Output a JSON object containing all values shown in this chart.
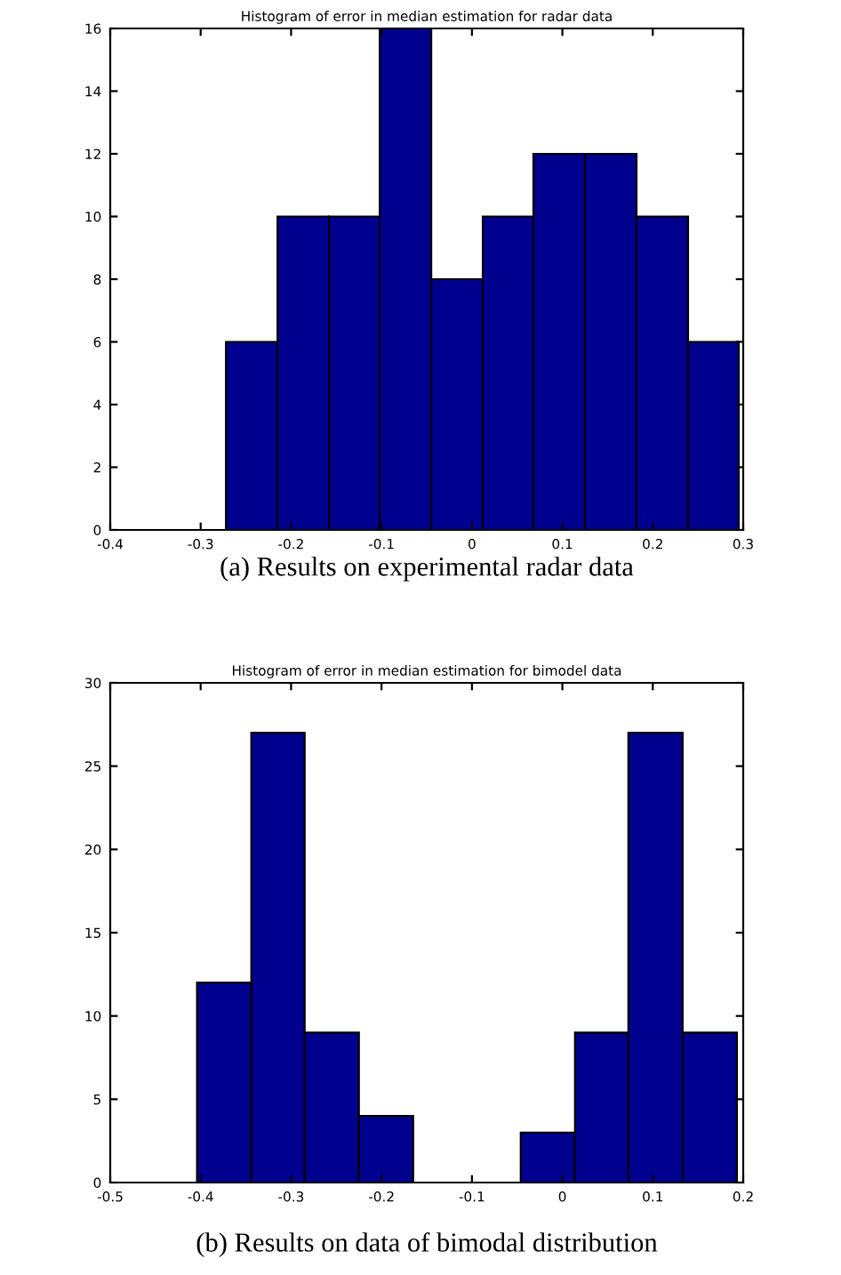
{
  "chart_data": [
    {
      "type": "histogram",
      "title": "Histogram of error in median estimation for radar data",
      "bins": [
        -0.272,
        -0.215,
        -0.158,
        -0.102,
        -0.045,
        0.012,
        0.068,
        0.125,
        0.182,
        0.239,
        0.295
      ],
      "values": [
        6,
        10,
        10,
        16,
        8,
        10,
        12,
        12,
        10,
        6
      ],
      "color": "#00008f",
      "xlim": [
        -0.4,
        0.3
      ],
      "xticks": [
        {
          "value": -0.4,
          "label": "-0.4"
        },
        {
          "value": -0.3,
          "label": "-0.3"
        },
        {
          "value": -0.2,
          "label": "-0.2"
        },
        {
          "value": -0.1,
          "label": "-0.1"
        },
        0,
        0.1,
        0.2,
        0.3
      ],
      "ylim": [
        0,
        16
      ],
      "yticks": [
        0,
        2,
        4,
        6,
        8,
        10,
        12,
        14,
        16
      ],
      "annotations": [
        "(a) Results on experimental radar data"
      ]
    },
    {
      "type": "histogram",
      "title": "Histogram of error in median estimation for bimodel data",
      "bins": [
        -0.404,
        -0.344,
        -0.285,
        -0.225,
        -0.165,
        -0.106,
        -0.046,
        0.014,
        0.073,
        0.133,
        0.193
      ],
      "values": [
        12,
        27,
        9,
        4,
        0,
        0,
        3,
        9,
        27,
        9
      ],
      "color": "#00008f",
      "xlim": [
        -0.5,
        0.2
      ],
      "xticks": [
        {
          "value": -0.5,
          "label": "-0.5"
        },
        {
          "value": -0.4,
          "label": "-0.4"
        },
        {
          "value": -0.3,
          "label": "-0.3"
        },
        {
          "value": -0.2,
          "label": "-0.2"
        },
        {
          "value": -0.1,
          "label": "-0.1"
        },
        0,
        0.1,
        0.2
      ],
      "ylim": [
        0,
        30
      ],
      "yticks": [
        0,
        5,
        10,
        15,
        20,
        25,
        30
      ],
      "annotations": [
        "(b) Results on data of bimodal distribution"
      ]
    }
  ]
}
